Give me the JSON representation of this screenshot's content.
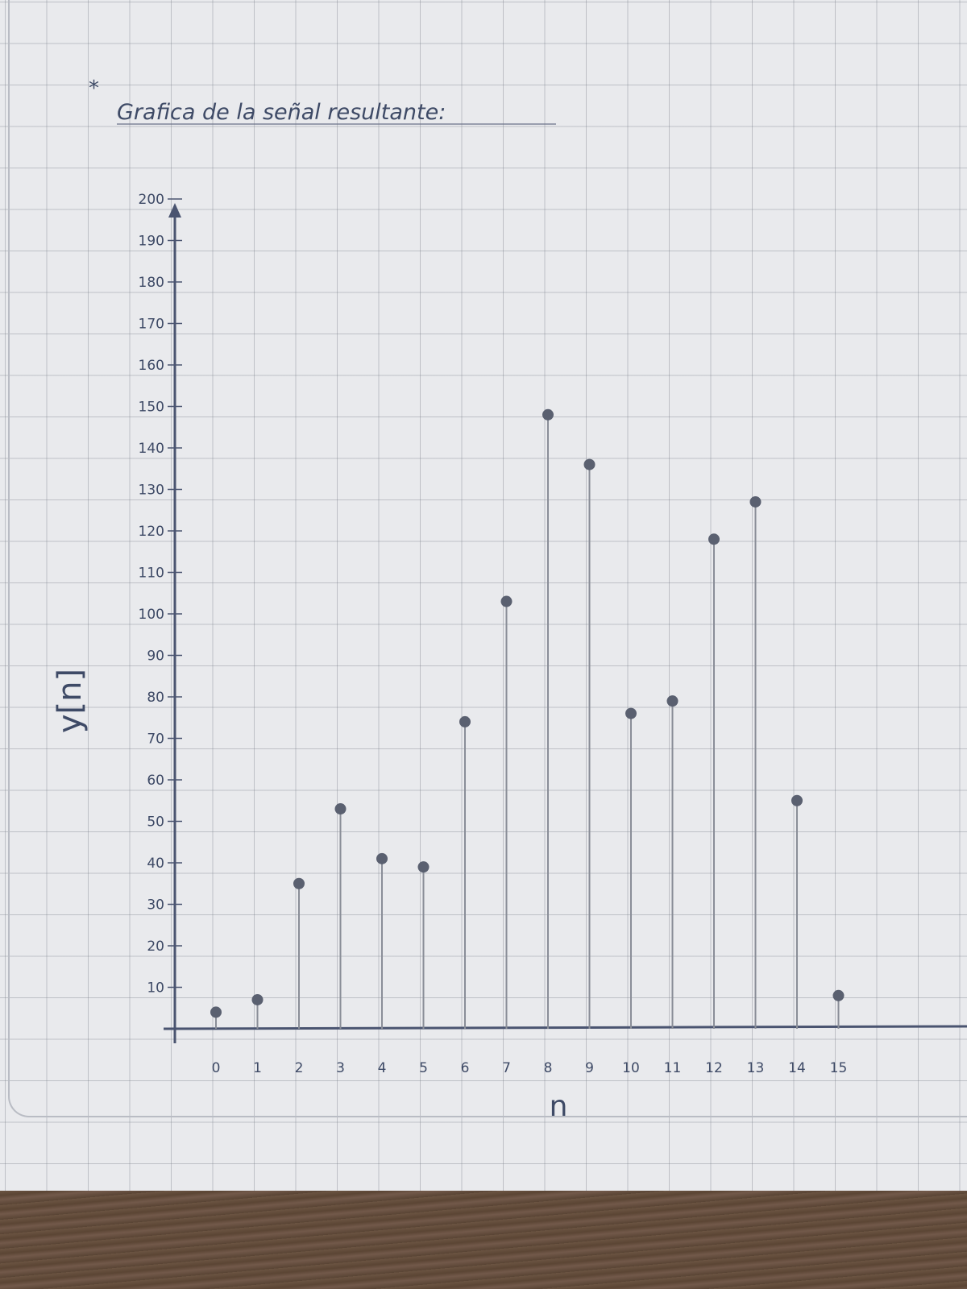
{
  "note": {
    "bullet": "*",
    "title": "Grafica de la señal resultante:"
  },
  "chart_data": {
    "type": "stem",
    "title": "Grafica de la señal resultante:",
    "xlabel": "n",
    "ylabel": "y[n]",
    "x": [
      0,
      1,
      2,
      3,
      4,
      5,
      6,
      7,
      8,
      9,
      10,
      11,
      12,
      13,
      14,
      15
    ],
    "values": [
      4,
      7,
      35,
      53,
      41,
      39,
      74,
      103,
      148,
      136,
      76,
      79,
      118,
      127,
      55,
      8
    ],
    "x_ticks": [
      "0",
      "1",
      "2",
      "3",
      "4",
      "5",
      "6",
      "7",
      "8",
      "9",
      "10",
      "11",
      "12",
      "13",
      "14",
      "15"
    ],
    "y_ticks": [
      10,
      20,
      30,
      40,
      50,
      60,
      70,
      80,
      90,
      100,
      110,
      120,
      130,
      140,
      150,
      160,
      170,
      180,
      190,
      200
    ],
    "ylim": [
      0,
      200
    ],
    "grid": true,
    "colors": {
      "ink": "#3e4a66",
      "stem": "#8a8e98",
      "marker": "#5a6070"
    }
  }
}
